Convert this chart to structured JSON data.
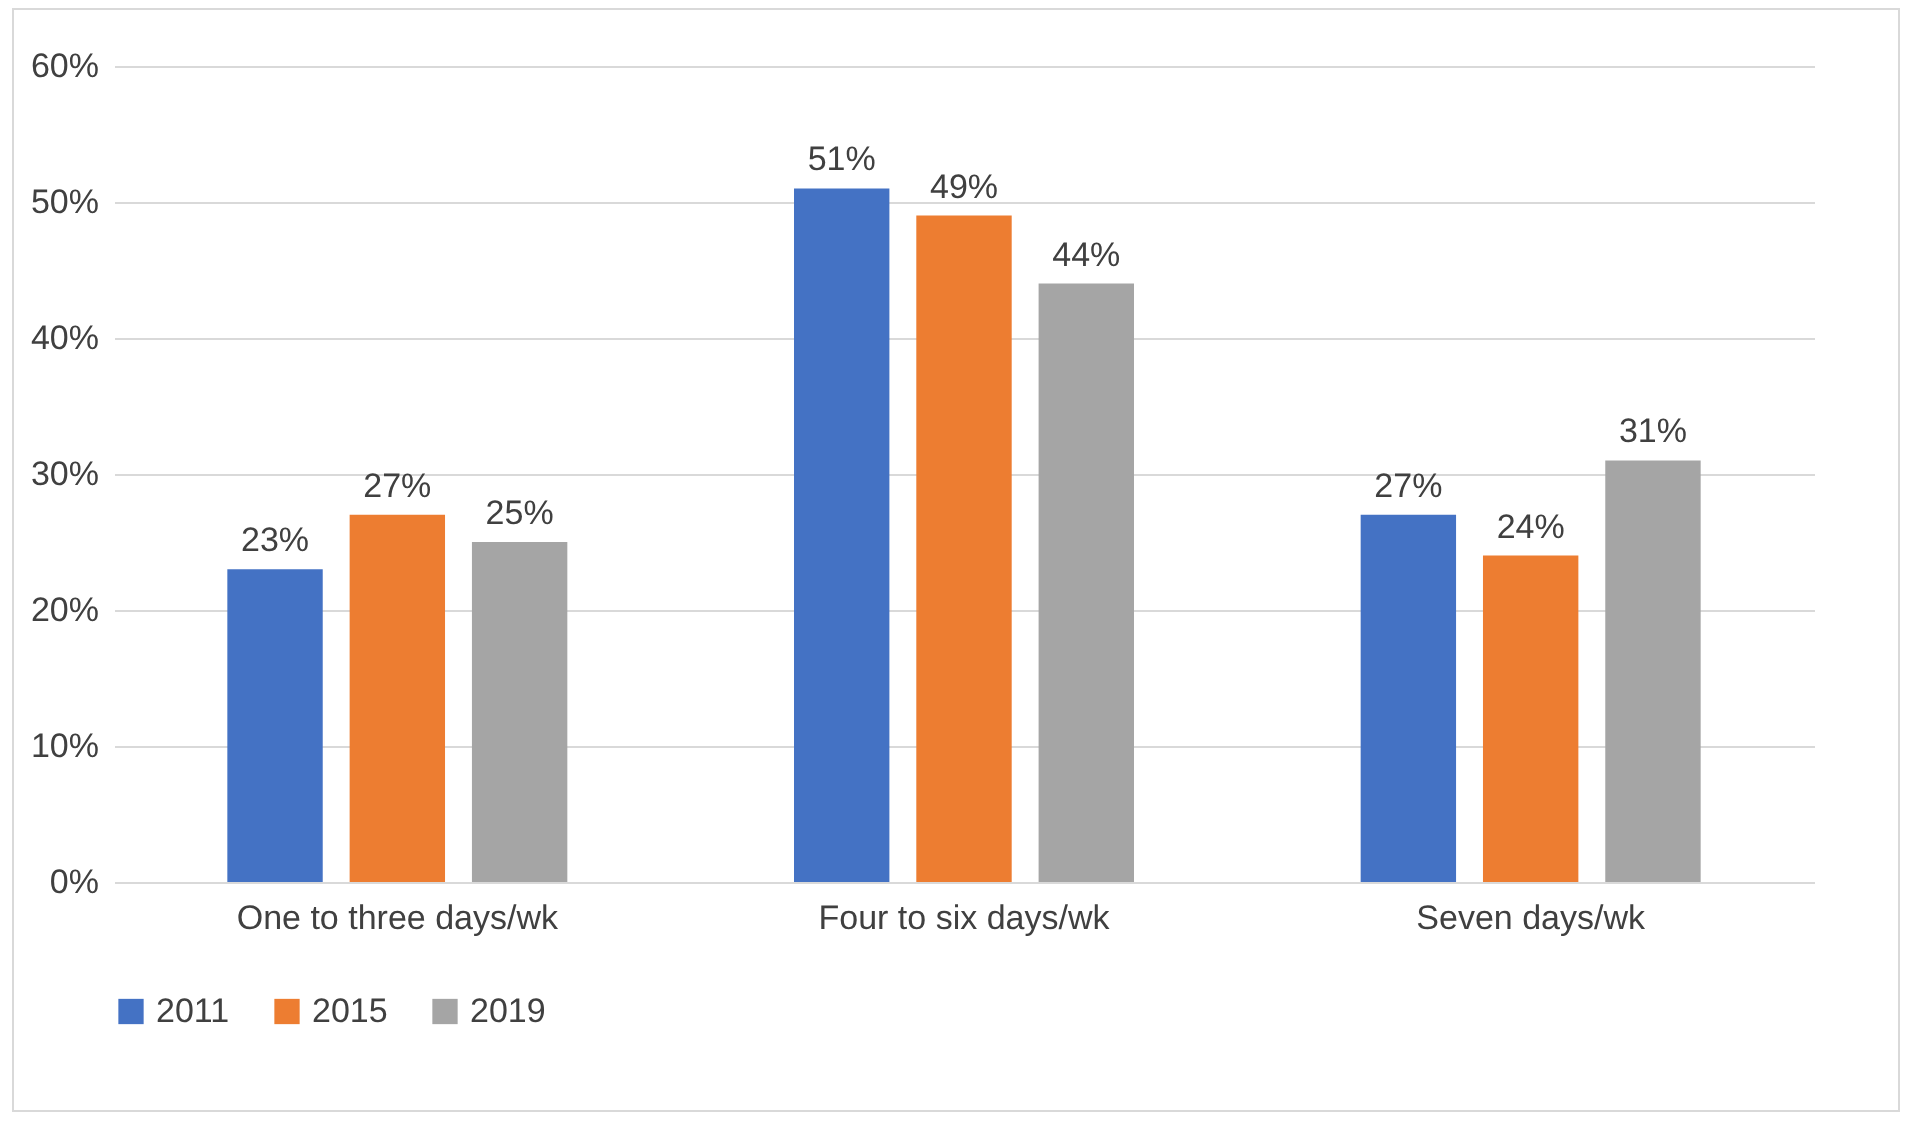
{
  "chart_data": {
    "type": "bar",
    "categories": [
      "One to three days/wk",
      "Four to six days/wk",
      "Seven days/wk"
    ],
    "series": [
      {
        "name": "2011",
        "color": "#4472c4",
        "values": [
          23,
          51,
          27
        ],
        "value_labels": [
          "23%",
          "51%",
          "27%"
        ]
      },
      {
        "name": "2015",
        "color": "#ed7d31",
        "values": [
          27,
          49,
          24
        ],
        "value_labels": [
          "27%",
          "49%",
          "24%"
        ]
      },
      {
        "name": "2019",
        "color": "#a5a5a5",
        "values": [
          25,
          44,
          31
        ],
        "value_labels": [
          "25%",
          "44%",
          "31%"
        ]
      }
    ],
    "ylim": [
      0,
      60
    ],
    "yticks": [
      {
        "value": 0,
        "label": "0%"
      },
      {
        "value": 10,
        "label": "10%"
      },
      {
        "value": 20,
        "label": "20%"
      },
      {
        "value": 30,
        "label": "30%"
      },
      {
        "value": 40,
        "label": "40%"
      },
      {
        "value": 50,
        "label": "50%"
      },
      {
        "value": 60,
        "label": "60%"
      }
    ],
    "grid": "y",
    "legend": "bottom"
  }
}
